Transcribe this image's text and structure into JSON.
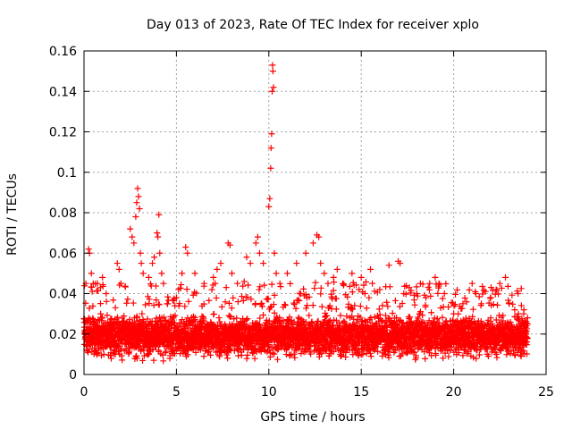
{
  "chart_data": {
    "type": "scatter",
    "title": "Day 013 of 2023, Rate Of TEC Index for receiver xplo",
    "xlabel": "GPS time / hours",
    "ylabel": "ROTI / TECUs",
    "xlim": [
      0,
      25
    ],
    "ylim": [
      0,
      0.16
    ],
    "xticks": [
      "0",
      "5",
      "10",
      "15",
      "20",
      "25"
    ],
    "yticks": [
      "0",
      "0.02",
      "0.04",
      "0.06",
      "0.08",
      "0.1",
      "0.12",
      "0.14",
      "0.16"
    ],
    "grid": true,
    "marker": "+",
    "color": "#ff0000",
    "baseline_band": {
      "x_range": [
        0,
        24
      ],
      "typical_range": [
        0.006,
        0.032
      ]
    },
    "series": [
      {
        "name": "ROTI",
        "x": [
          0.1,
          0.25,
          0.3,
          0.4,
          0.5,
          0.9,
          1.0,
          1.2,
          1.8,
          1.9,
          2.0,
          2.5,
          2.6,
          2.7,
          2.8,
          2.85,
          2.9,
          2.95,
          3.0,
          3.05,
          3.1,
          3.2,
          3.5,
          3.7,
          3.8,
          3.95,
          4.0,
          4.05,
          4.1,
          4.2,
          4.3,
          4.5,
          5.0,
          5.3,
          5.5,
          5.6,
          6.0,
          6.5,
          7.0,
          7.2,
          7.4,
          7.8,
          7.9,
          8.0,
          8.3,
          8.8,
          9.0,
          9.3,
          9.4,
          9.5,
          9.7,
          10.0,
          10.05,
          10.1,
          10.12,
          10.15,
          10.18,
          10.2,
          10.22,
          10.25,
          10.3,
          10.4,
          10.6,
          11.0,
          11.5,
          12.0,
          12.4,
          12.6,
          12.7,
          12.8,
          13.0,
          13.2,
          13.5,
          13.7,
          14.0,
          14.5,
          15.0,
          15.2,
          15.5,
          15.6,
          16.0,
          16.5,
          17.0,
          17.1,
          17.3,
          17.6,
          18.0,
          18.2,
          18.5,
          18.7,
          19.0,
          19.2,
          19.5,
          20.0,
          20.5,
          21.0,
          21.2,
          21.5,
          22.0,
          22.3,
          22.5,
          22.8,
          23.0,
          23.3,
          23.5,
          23.8,
          24.0
        ],
        "y": [
          0.045,
          0.062,
          0.06,
          0.05,
          0.045,
          0.03,
          0.048,
          0.04,
          0.055,
          0.052,
          0.045,
          0.072,
          0.068,
          0.065,
          0.078,
          0.085,
          0.092,
          0.088,
          0.082,
          0.06,
          0.055,
          0.05,
          0.048,
          0.055,
          0.058,
          0.07,
          0.068,
          0.079,
          0.06,
          0.05,
          0.045,
          0.035,
          0.038,
          0.05,
          0.063,
          0.06,
          0.05,
          0.045,
          0.048,
          0.052,
          0.055,
          0.065,
          0.064,
          0.05,
          0.045,
          0.058,
          0.055,
          0.065,
          0.068,
          0.06,
          0.055,
          0.083,
          0.087,
          0.102,
          0.112,
          0.119,
          0.14,
          0.153,
          0.15,
          0.142,
          0.06,
          0.05,
          0.045,
          0.05,
          0.055,
          0.06,
          0.065,
          0.069,
          0.068,
          0.055,
          0.05,
          0.045,
          0.048,
          0.052,
          0.045,
          0.05,
          0.048,
          0.04,
          0.052,
          0.045,
          0.042,
          0.054,
          0.056,
          0.055,
          0.04,
          0.043,
          0.04,
          0.045,
          0.038,
          0.045,
          0.048,
          0.045,
          0.04,
          0.03,
          0.035,
          0.045,
          0.04,
          0.035,
          0.038,
          0.042,
          0.045,
          0.048,
          0.035,
          0.032,
          0.03,
          0.032,
          0.028
        ]
      }
    ]
  }
}
